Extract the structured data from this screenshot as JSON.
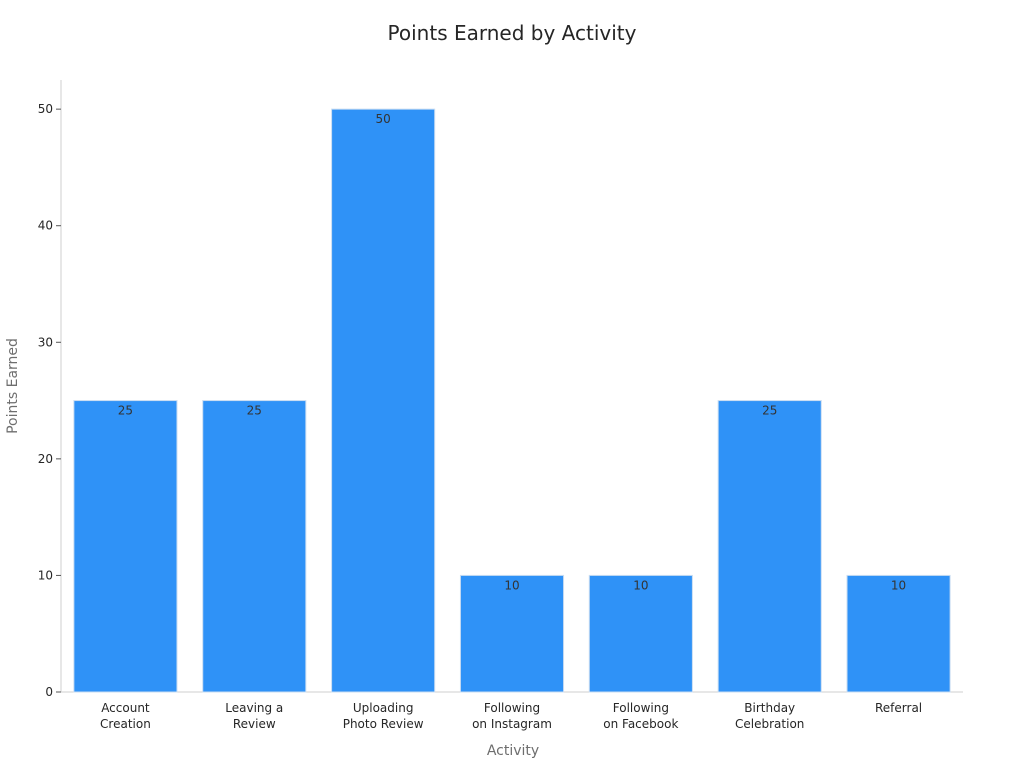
{
  "chart_data": {
    "type": "bar",
    "title": "Points Earned by Activity",
    "xlabel": "Activity",
    "ylabel": "Points Earned",
    "categories": [
      [
        "Account",
        "Creation"
      ],
      [
        "Leaving a",
        "Review"
      ],
      [
        "Uploading",
        "Photo Review"
      ],
      [
        "Following",
        "on Instagram"
      ],
      [
        "Following",
        "on Facebook"
      ],
      [
        "Birthday",
        "Celebration"
      ],
      [
        "Referral"
      ]
    ],
    "values": [
      25,
      25,
      50,
      10,
      10,
      25,
      10
    ],
    "ylim": [
      0,
      52.5
    ],
    "yticks": [
      0,
      10,
      20,
      30,
      40,
      50
    ],
    "grid": false,
    "legend": "none",
    "bar_color": "#2f92f7",
    "bar_edge_color": "#c8dcf2"
  }
}
